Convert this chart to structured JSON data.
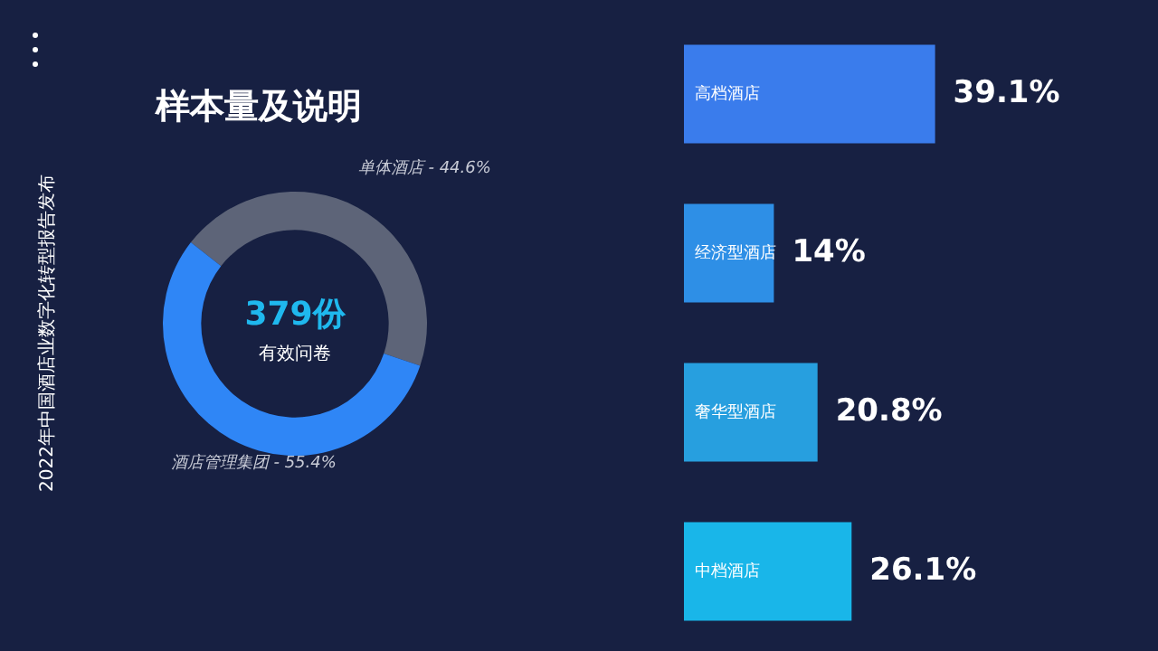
{
  "chart_data": [
    {
      "type": "donut",
      "title": "样本量及说明",
      "categories": [
        "单体酒店",
        "酒店管理集团"
      ],
      "values": [
        44.6,
        55.4
      ],
      "colors": [
        "#5d6478",
        "#2f86f6"
      ],
      "value_labels": [
        "44.6%",
        "55.4%"
      ],
      "annotations": [
        "379份",
        "有效问卷",
        "2022年中国酒店业数字化转型报告发布"
      ],
      "legend": false
    },
    {
      "type": "bar",
      "orientation": "horizontal",
      "categories": [
        "高档酒店",
        "经济型酒店",
        "奢华型酒店",
        "中档酒店"
      ],
      "values": [
        39.1,
        14,
        20.8,
        26.1
      ],
      "colors": [
        "#3a7cec",
        "#2e8fe6",
        "#279fdf",
        "#19b6e9"
      ],
      "value_labels": [
        "39.1%",
        "14%",
        "20.8%",
        "26.1%"
      ],
      "tick_labels": "y",
      "grid": false,
      "legend": false
    }
  ]
}
